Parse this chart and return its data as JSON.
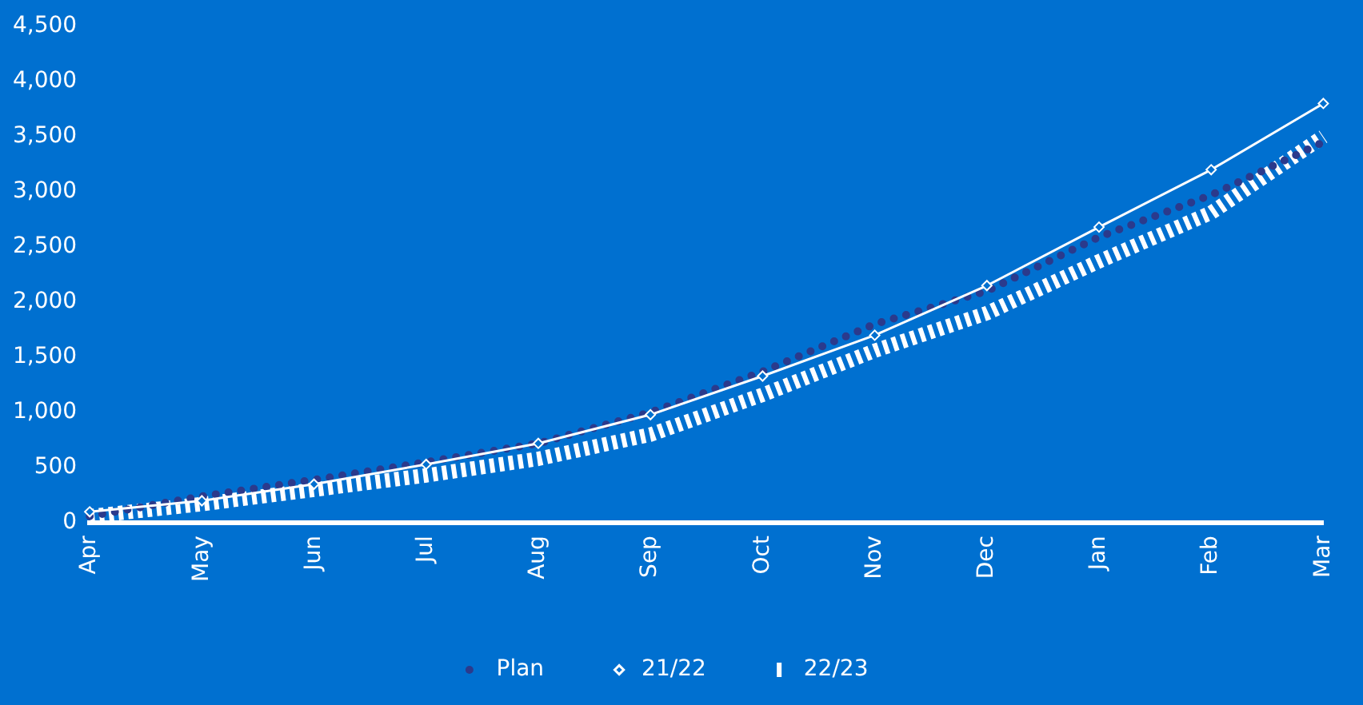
{
  "chart_data": {
    "type": "line",
    "categories": [
      "Apr",
      "May",
      "Jun",
      "Jul",
      "Aug",
      "Sep",
      "Oct",
      "Nov",
      "Dec",
      "Jan",
      "Feb",
      "Mar"
    ],
    "series": [
      {
        "name": "Plan",
        "color": "#2b3a8c",
        "line_style": "dotted",
        "marker": "none",
        "values": [
          60,
          240,
          390,
          550,
          720,
          1000,
          1370,
          1800,
          2100,
          2590,
          2970,
          3450
        ]
      },
      {
        "name": "21/22",
        "color": "#ffffff",
        "line_style": "solid",
        "marker": "diamond",
        "values": [
          100,
          200,
          350,
          530,
          720,
          980,
          1330,
          1700,
          2150,
          2680,
          3200,
          3800
        ]
      },
      {
        "name": "22/23",
        "color": "#ffffff",
        "line_style": "dashed",
        "marker": "none",
        "values": [
          60,
          170,
          300,
          430,
          580,
          800,
          1160,
          1560,
          1900,
          2370,
          2810,
          3500
        ]
      }
    ],
    "ylim": [
      0,
      4500
    ],
    "yticks": [
      0,
      500,
      {
        "value": 1000,
        "label": "1,000"
      },
      {
        "value": 1500,
        "label": "1,500"
      },
      {
        "value": 2000,
        "label": "2,000"
      },
      {
        "value": 2500,
        "label": "2,500"
      },
      {
        "value": 3000,
        "label": "3,000"
      },
      {
        "value": 3500,
        "label": "3,500"
      },
      {
        "value": 4000,
        "label": "4,000"
      },
      {
        "value": 4500,
        "label": "4,500"
      }
    ],
    "grid": false,
    "legend": "bottom"
  }
}
